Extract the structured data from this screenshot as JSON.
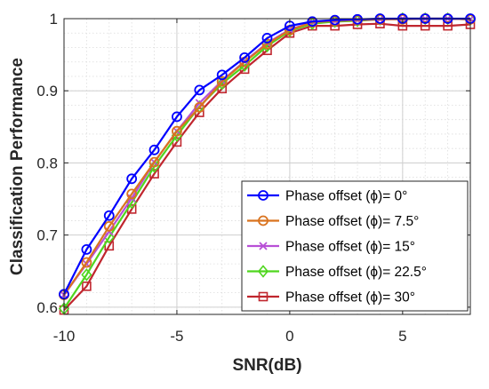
{
  "chart_data": {
    "type": "line",
    "xlabel": "SNR(dB)",
    "ylabel": "Classification Performance",
    "xlim": [
      -10,
      8
    ],
    "ylim": [
      0.59,
      1.0
    ],
    "xticks": [
      -10,
      -5,
      0,
      5
    ],
    "xtick_labels": [
      "-10",
      "-5",
      "0",
      "5"
    ],
    "yticks": [
      0.6,
      0.7,
      0.8,
      0.9,
      1.0
    ],
    "ytick_labels": [
      "0.6",
      "0.7",
      "0.8",
      "0.9",
      "1"
    ],
    "grid": true,
    "minor_grid": true,
    "legend_position": "bottom-right",
    "x": [
      -10,
      -9,
      -8,
      -7,
      -6,
      -5,
      -4,
      -3,
      -2,
      -1,
      0,
      1,
      2,
      3,
      4,
      5,
      6,
      7,
      8
    ],
    "series": [
      {
        "name": "Phase offset (ϕ)= 0°",
        "color": "#0000ff",
        "marker": "circle",
        "values": [
          0.618,
          0.68,
          0.727,
          0.778,
          0.818,
          0.864,
          0.901,
          0.922,
          0.946,
          0.973,
          0.99,
          0.996,
          0.998,
          0.999,
          1.0,
          1.0,
          1.0,
          1.0,
          1.0
        ]
      },
      {
        "name": "Phase offset (ϕ)= 7.5°",
        "color": "#d9731f",
        "marker": "circle",
        "values": [
          0.617,
          0.662,
          0.712,
          0.757,
          0.801,
          0.844,
          0.877,
          0.913,
          0.94,
          0.965,
          0.984,
          0.995,
          0.997,
          0.998,
          0.999,
          0.999,
          1.0,
          1.0,
          0.999
        ]
      },
      {
        "name": "Phase offset (ϕ)= 15°",
        "color": "#b84fd6",
        "marker": "x",
        "values": [
          0.617,
          0.66,
          0.705,
          0.751,
          0.801,
          0.844,
          0.883,
          0.914,
          0.941,
          0.966,
          0.985,
          0.995,
          0.997,
          0.998,
          0.999,
          1.0,
          1.0,
          1.0,
          0.999
        ]
      },
      {
        "name": "Phase offset (ϕ)= 22.5°",
        "color": "#4fd61f",
        "marker": "diamond",
        "values": [
          0.598,
          0.645,
          0.697,
          0.745,
          0.795,
          0.838,
          0.878,
          0.91,
          0.935,
          0.962,
          0.983,
          0.993,
          0.996,
          0.997,
          0.999,
          1.0,
          1.0,
          1.0,
          0.999
        ]
      },
      {
        "name": "Phase offset (ϕ)= 30°",
        "color": "#c0262e",
        "marker": "square",
        "values": [
          0.596,
          0.629,
          0.685,
          0.736,
          0.785,
          0.829,
          0.87,
          0.903,
          0.93,
          0.956,
          0.98,
          0.99,
          0.99,
          0.992,
          0.993,
          0.99,
          0.99,
          0.99,
          0.992
        ]
      }
    ]
  }
}
